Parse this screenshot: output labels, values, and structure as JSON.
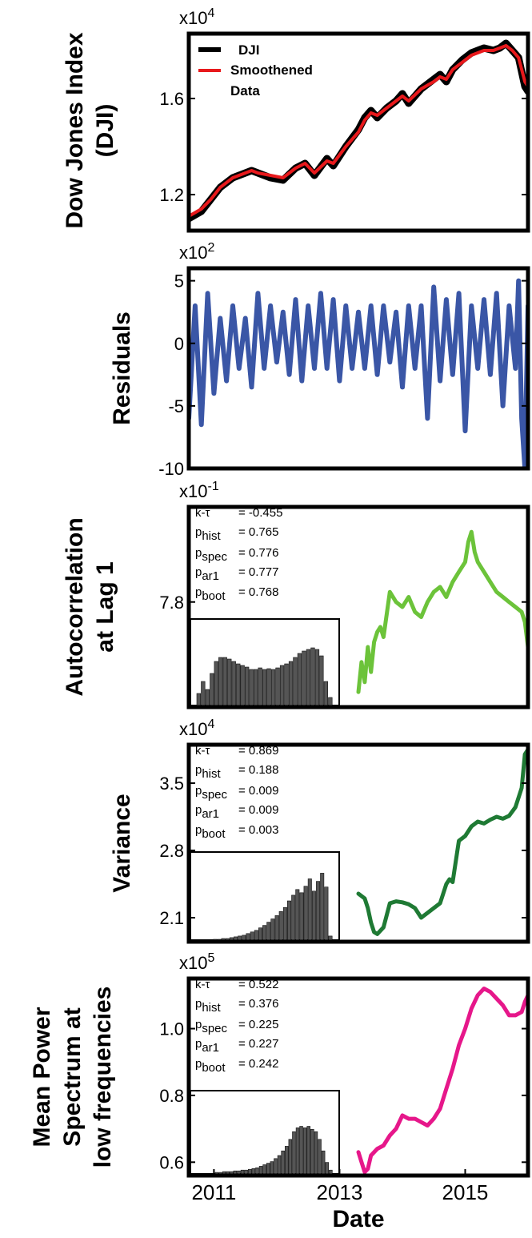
{
  "chart_data": [
    {
      "type": "line",
      "ylabel_lines": [
        "Dow Jones Index",
        "(DJI)"
      ],
      "exponent_label": "x10^4",
      "exponent_base": "x10",
      "exponent_power": "4",
      "yticks": [
        "1.2",
        "1.6"
      ],
      "ytick_values": [
        1.2,
        1.6
      ],
      "ylim": [
        1.05,
        1.87
      ],
      "xlim": [
        2010.6,
        2016.0
      ],
      "legend": [
        "DJI",
        "Smoothened",
        "Data"
      ],
      "colors": {
        "raw": "#000000",
        "smooth": "#e8191c"
      },
      "series": [
        {
          "name": "DJI",
          "x": [
            2010.6,
            2010.8,
            2010.95,
            2011.1,
            2011.3,
            2011.5,
            2011.6,
            2011.7,
            2011.9,
            2012.1,
            2012.3,
            2012.45,
            2012.6,
            2012.8,
            2012.9,
            2013.1,
            2013.3,
            2013.4,
            2013.5,
            2013.6,
            2013.75,
            2013.9,
            2014.0,
            2014.1,
            2014.3,
            2014.5,
            2014.6,
            2014.7,
            2014.8,
            2014.95,
            2015.1,
            2015.3,
            2015.45,
            2015.55,
            2015.65,
            2015.75,
            2015.85,
            2015.95,
            2016.0
          ],
          "y": [
            1.1,
            1.13,
            1.18,
            1.23,
            1.27,
            1.29,
            1.3,
            1.29,
            1.27,
            1.26,
            1.31,
            1.33,
            1.28,
            1.35,
            1.32,
            1.4,
            1.47,
            1.52,
            1.55,
            1.52,
            1.56,
            1.59,
            1.62,
            1.58,
            1.64,
            1.68,
            1.7,
            1.67,
            1.72,
            1.76,
            1.79,
            1.81,
            1.8,
            1.81,
            1.83,
            1.8,
            1.77,
            1.65,
            1.63
          ]
        },
        {
          "name": "Smoothened Data",
          "x": [
            2010.6,
            2010.8,
            2010.95,
            2011.1,
            2011.3,
            2011.5,
            2011.6,
            2011.7,
            2011.9,
            2012.1,
            2012.3,
            2012.45,
            2012.6,
            2012.8,
            2012.9,
            2013.1,
            2013.3,
            2013.4,
            2013.5,
            2013.6,
            2013.75,
            2013.9,
            2014.0,
            2014.1,
            2014.3,
            2014.5,
            2014.6,
            2014.7,
            2014.8,
            2014.95,
            2015.1,
            2015.3,
            2015.45,
            2015.55,
            2015.65,
            2015.75,
            2015.85,
            2015.95,
            2016.0
          ],
          "y": [
            1.11,
            1.14,
            1.18,
            1.23,
            1.27,
            1.29,
            1.3,
            1.29,
            1.28,
            1.27,
            1.31,
            1.33,
            1.29,
            1.34,
            1.33,
            1.4,
            1.46,
            1.51,
            1.54,
            1.53,
            1.56,
            1.59,
            1.61,
            1.59,
            1.64,
            1.67,
            1.69,
            1.68,
            1.72,
            1.75,
            1.78,
            1.8,
            1.8,
            1.81,
            1.82,
            1.8,
            1.77,
            1.67,
            1.65
          ]
        }
      ]
    },
    {
      "type": "line",
      "ylabel_lines": [
        "Residuals"
      ],
      "exponent_label": "x10^2",
      "exponent_base": "x10",
      "exponent_power": "2",
      "yticks": [
        "5",
        "0",
        "-5",
        "-10"
      ],
      "ytick_values": [
        5,
        0,
        -5,
        -10
      ],
      "ylim": [
        -10,
        6
      ],
      "xlim": [
        2010.6,
        2016.0
      ],
      "colors": {
        "line": "#3a56a6"
      },
      "series": [
        {
          "name": "Residuals",
          "x": [
            2010.6,
            2010.7,
            2010.8,
            2010.9,
            2011.0,
            2011.1,
            2011.2,
            2011.3,
            2011.4,
            2011.5,
            2011.6,
            2011.7,
            2011.8,
            2011.9,
            2012.0,
            2012.1,
            2012.2,
            2012.3,
            2012.4,
            2012.5,
            2012.6,
            2012.7,
            2012.8,
            2012.9,
            2013.0,
            2013.1,
            2013.2,
            2013.3,
            2013.4,
            2013.5,
            2013.6,
            2013.7,
            2013.8,
            2013.9,
            2014.0,
            2014.1,
            2014.2,
            2014.3,
            2014.4,
            2014.5,
            2014.6,
            2014.7,
            2014.8,
            2014.9,
            2015.0,
            2015.1,
            2015.2,
            2015.3,
            2015.4,
            2015.5,
            2015.6,
            2015.7,
            2015.8,
            2015.85,
            2015.9,
            2015.95,
            2016.0
          ],
          "y": [
            -6,
            3,
            -6.5,
            4,
            -4,
            2,
            -3,
            3,
            -2,
            2,
            -3.5,
            4,
            -2,
            3,
            -1.5,
            2.5,
            -2.5,
            3.5,
            -3,
            3,
            -2,
            4,
            -2,
            3.5,
            -3,
            3,
            -2,
            2.5,
            -2,
            3,
            -2.5,
            3,
            -1.5,
            2.5,
            -3.5,
            3,
            -2,
            3,
            -6,
            4.5,
            -3,
            3.5,
            -2.5,
            4,
            -7,
            3,
            -2,
            3.5,
            -2.5,
            4,
            -5,
            3,
            -2,
            5,
            -6,
            -10,
            3
          ]
        }
      ]
    },
    {
      "type": "line",
      "ylabel_lines": [
        "Autocorrelation",
        "at Lag 1"
      ],
      "exponent_label": "x10^-1",
      "exponent_base": "x10",
      "exponent_power": "-1",
      "yticks": [
        "7.8"
      ],
      "ytick_values": [
        7.8
      ],
      "ylim": [
        7.59,
        7.99
      ],
      "xlim": [
        2010.6,
        2016.0
      ],
      "colors": {
        "line": "#6cc33a"
      },
      "stats": {
        "k_tau": "= -0.455",
        "p_hist": "= 0.765",
        "p_spec": "= 0.776",
        "p_ar1": "= 0.777",
        "p_boot": "= 0.768"
      },
      "histogram": [
        0.15,
        0.3,
        0.2,
        0.4,
        0.55,
        0.6,
        0.6,
        0.58,
        0.55,
        0.52,
        0.5,
        0.48,
        0.45,
        0.45,
        0.47,
        0.45,
        0.46,
        0.45,
        0.47,
        0.5,
        0.52,
        0.55,
        0.6,
        0.65,
        0.68,
        0.7,
        0.72,
        0.7,
        0.62,
        0.3,
        0.1
      ],
      "series": [
        {
          "name": "Autocorrelation at Lag 1",
          "x": [
            2013.3,
            2013.35,
            2013.4,
            2013.45,
            2013.5,
            2013.55,
            2013.6,
            2013.65,
            2013.7,
            2013.8,
            2013.9,
            2014.0,
            2014.1,
            2014.2,
            2014.3,
            2014.4,
            2014.5,
            2014.6,
            2014.7,
            2014.8,
            2014.9,
            2015.0,
            2015.05,
            2015.1,
            2015.15,
            2015.2,
            2015.3,
            2015.4,
            2015.5,
            2015.6,
            2015.7,
            2015.8,
            2015.9,
            2015.95,
            2016.0
          ],
          "y": [
            7.62,
            7.68,
            7.64,
            7.71,
            7.66,
            7.72,
            7.74,
            7.75,
            7.73,
            7.82,
            7.8,
            7.79,
            7.81,
            7.78,
            7.77,
            7.8,
            7.82,
            7.83,
            7.81,
            7.84,
            7.86,
            7.88,
            7.92,
            7.94,
            7.9,
            7.88,
            7.86,
            7.84,
            7.82,
            7.81,
            7.8,
            7.79,
            7.78,
            7.76,
            7.71
          ]
        }
      ]
    },
    {
      "type": "line",
      "ylabel_lines": [
        "Variance"
      ],
      "exponent_label": "x10^4",
      "exponent_base": "x10",
      "exponent_power": "4",
      "yticks": [
        "3.5",
        "2.8",
        "2.1"
      ],
      "ytick_values": [
        3.5,
        2.8,
        2.1
      ],
      "ylim": [
        1.85,
        3.9
      ],
      "xlim": [
        2010.6,
        2016.0
      ],
      "colors": {
        "line": "#1f7a34"
      },
      "stats": {
        "k_tau": "= 0.869",
        "p_hist": "= 0.188",
        "p_spec": "= 0.009",
        "p_ar1": "= 0.009",
        "p_boot": "= 0.003"
      },
      "histogram": [
        0.0,
        0.0,
        0.0,
        0.0,
        0.01,
        0.01,
        0.02,
        0.02,
        0.03,
        0.04,
        0.05,
        0.06,
        0.08,
        0.1,
        0.12,
        0.15,
        0.18,
        0.22,
        0.26,
        0.3,
        0.35,
        0.4,
        0.48,
        0.55,
        0.62,
        0.58,
        0.66,
        0.75,
        0.6,
        0.72,
        0.82,
        0.65,
        0.05
      ],
      "series": [
        {
          "name": "Variance",
          "x": [
            2013.3,
            2013.4,
            2013.45,
            2013.5,
            2013.55,
            2013.6,
            2013.7,
            2013.8,
            2013.9,
            2014.0,
            2014.1,
            2014.2,
            2014.3,
            2014.4,
            2014.5,
            2014.6,
            2014.7,
            2014.75,
            2014.8,
            2014.9,
            2015.0,
            2015.1,
            2015.2,
            2015.3,
            2015.4,
            2015.5,
            2015.6,
            2015.7,
            2015.8,
            2015.9,
            2015.95,
            2016.0
          ],
          "y": [
            2.35,
            2.3,
            2.2,
            2.05,
            1.95,
            1.93,
            2.0,
            2.25,
            2.27,
            2.26,
            2.24,
            2.2,
            2.1,
            2.15,
            2.2,
            2.25,
            2.45,
            2.5,
            2.47,
            2.9,
            2.95,
            3.05,
            3.1,
            3.08,
            3.12,
            3.15,
            3.13,
            3.16,
            3.25,
            3.45,
            3.8,
            3.85
          ]
        }
      ]
    },
    {
      "type": "line",
      "ylabel_lines": [
        "Mean Power",
        "Spectrum at",
        "low frequencies"
      ],
      "exponent_label": "x10^5",
      "exponent_base": "x10",
      "exponent_power": "5",
      "yticks": [
        "1.0",
        "0.8",
        "0.6"
      ],
      "ytick_values": [
        1.0,
        0.8,
        0.6
      ],
      "ylim": [
        0.56,
        1.15
      ],
      "xlim": [
        2010.6,
        2016.0
      ],
      "xticks": [
        "2011",
        "2013",
        "2015"
      ],
      "xtick_values": [
        2011,
        2013,
        2015
      ],
      "xlabel": "Date",
      "colors": {
        "line": "#e6178a"
      },
      "stats": {
        "k_tau": "= 0.522",
        "p_hist": "= 0.376",
        "p_spec": "= 0.225",
        "p_ar1": "= 0.227",
        "p_boot": "= 0.242"
      },
      "histogram": [
        0.0,
        0.0,
        0.0,
        0.0,
        0.0,
        0.02,
        0.02,
        0.03,
        0.03,
        0.03,
        0.04,
        0.04,
        0.05,
        0.05,
        0.06,
        0.07,
        0.08,
        0.1,
        0.12,
        0.14,
        0.16,
        0.2,
        0.24,
        0.3,
        0.36,
        0.45,
        0.55,
        0.6,
        0.62,
        0.6,
        0.62,
        0.58,
        0.55,
        0.45,
        0.3,
        0.15,
        0.05
      ],
      "series": [
        {
          "name": "Mean Power Spectrum",
          "x": [
            2013.3,
            2013.35,
            2013.4,
            2013.45,
            2013.5,
            2013.6,
            2013.7,
            2013.8,
            2013.9,
            2014.0,
            2014.1,
            2014.2,
            2014.3,
            2014.4,
            2014.5,
            2014.6,
            2014.7,
            2014.8,
            2014.9,
            2015.0,
            2015.1,
            2015.2,
            2015.3,
            2015.4,
            2015.5,
            2015.6,
            2015.7,
            2015.8,
            2015.9,
            2015.95,
            2016.0
          ],
          "y": [
            0.63,
            0.6,
            0.57,
            0.58,
            0.62,
            0.64,
            0.65,
            0.68,
            0.7,
            0.74,
            0.73,
            0.73,
            0.72,
            0.71,
            0.73,
            0.76,
            0.82,
            0.88,
            0.95,
            1.0,
            1.06,
            1.1,
            1.12,
            1.11,
            1.09,
            1.07,
            1.04,
            1.04,
            1.05,
            1.08,
            1.1
          ]
        }
      ]
    }
  ]
}
